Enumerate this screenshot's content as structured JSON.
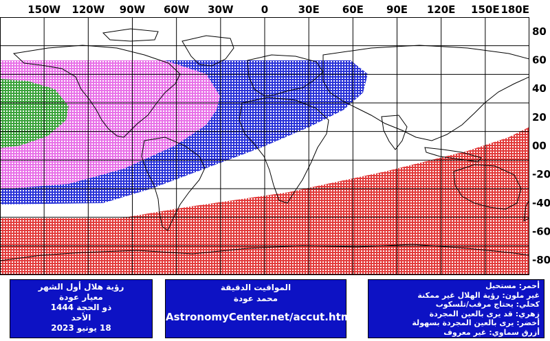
{
  "map": {
    "longitude_labels": [
      "150W",
      "120W",
      "90W",
      "60W",
      "30W",
      "0",
      "30E",
      "60E",
      "90E",
      "120E",
      "150E",
      "180E"
    ],
    "latitude_labels": [
      "80",
      "60",
      "40",
      "20",
      "00",
      "-20",
      "-40",
      "-60",
      "-80"
    ]
  },
  "colors": {
    "impossible_red": "#e23b3b",
    "telescope_blue": "#2a33d8",
    "binoculars_magenta": "#e872e8",
    "naked_eye_green": "#3aa23a",
    "panel_bg": "#0d12c4"
  },
  "info_panel": {
    "title": "رؤية هلال أول الشهر",
    "criterion": "معيار عودة",
    "month": "ذو الحجة 1444",
    "weekday": "الأحد",
    "date": "18 يونيو 2023"
  },
  "credit_panel": {
    "label": "المواقيت الدقيقة",
    "author": "محمد عودة",
    "url": "AstronomyCenter.net/accut.html"
  },
  "legend": [
    {
      "text": "أحمر: مستحيل",
      "color_name": "red"
    },
    {
      "text": "غير ملون: رؤية الهلال غير ممكنة",
      "color_name": "none"
    },
    {
      "text": "كحلي: يحتاج مرقب/تلسكوب",
      "color_name": "navy"
    },
    {
      "text": "زهري: قد يرى بالعين المجردة",
      "color_name": "pink"
    },
    {
      "text": "أخضر: يرى بالعين المجردة بسهولة",
      "color_name": "green"
    },
    {
      "text": "أزرق سماوي: غير معروف",
      "color_name": "sky-blue"
    }
  ]
}
